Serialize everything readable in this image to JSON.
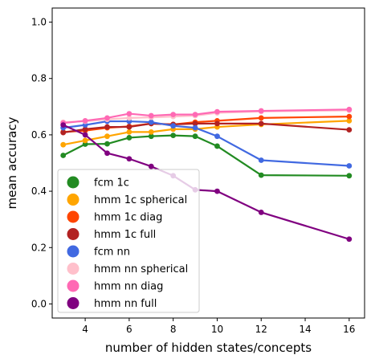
{
  "chart_data": {
    "type": "line",
    "xlabel": "number of hidden states/concepts",
    "ylabel": "mean accuracy",
    "xlim": [
      2.5,
      16.7
    ],
    "ylim": [
      -0.05,
      1.05
    ],
    "xticks": [
      4,
      6,
      8,
      10,
      12,
      14,
      16
    ],
    "xtick_labels": [
      "4",
      "6",
      "8",
      "10",
      "12",
      "14",
      "16"
    ],
    "yticks": [
      0.0,
      0.2,
      0.4,
      0.6,
      0.8,
      1.0
    ],
    "ytick_labels": [
      "0.0",
      "0.2",
      "0.4",
      "0.6",
      "0.8",
      "1.0"
    ],
    "grid": false,
    "legend_position": "lower-left",
    "x": [
      3,
      4,
      5,
      6,
      7,
      8,
      9,
      10,
      12,
      16
    ],
    "series": [
      {
        "name": "fcm 1c",
        "color": "#228b22",
        "values": [
          0.527,
          0.567,
          0.568,
          0.59,
          0.595,
          0.598,
          0.595,
          0.56,
          0.457,
          0.455
        ]
      },
      {
        "name": "hmm 1c spherical",
        "color": "#ffa500",
        "values": [
          0.565,
          0.58,
          0.595,
          0.61,
          0.61,
          0.62,
          0.62,
          0.628,
          0.637,
          0.65
        ]
      },
      {
        "name": "hmm 1c diag",
        "color": "#ff4500",
        "values": [
          0.61,
          0.615,
          0.625,
          0.63,
          0.64,
          0.637,
          0.645,
          0.65,
          0.66,
          0.665
        ]
      },
      {
        "name": "hmm 1c full",
        "color": "#b22222",
        "values": [
          0.608,
          0.62,
          0.628,
          0.628,
          0.64,
          0.637,
          0.64,
          0.64,
          0.64,
          0.618
        ]
      },
      {
        "name": "fcm nn",
        "color": "#4169e1",
        "values": [
          0.625,
          0.635,
          0.648,
          0.648,
          0.645,
          0.632,
          0.625,
          0.595,
          0.51,
          0.49
        ]
      },
      {
        "name": "hmm nn spherical",
        "color": "#ffc0cb",
        "values": [
          0.645,
          0.648,
          0.655,
          0.66,
          0.662,
          0.665,
          0.668,
          0.678,
          0.683,
          0.687
        ]
      },
      {
        "name": "hmm nn diag",
        "color": "#ff69b4",
        "values": [
          0.642,
          0.65,
          0.66,
          0.675,
          0.668,
          0.672,
          0.672,
          0.682,
          0.685,
          0.69
        ]
      },
      {
        "name": "hmm nn full",
        "color": "#800080",
        "values": [
          0.635,
          0.6,
          0.535,
          0.515,
          0.488,
          0.455,
          0.405,
          0.4,
          0.325,
          0.23
        ]
      }
    ]
  }
}
